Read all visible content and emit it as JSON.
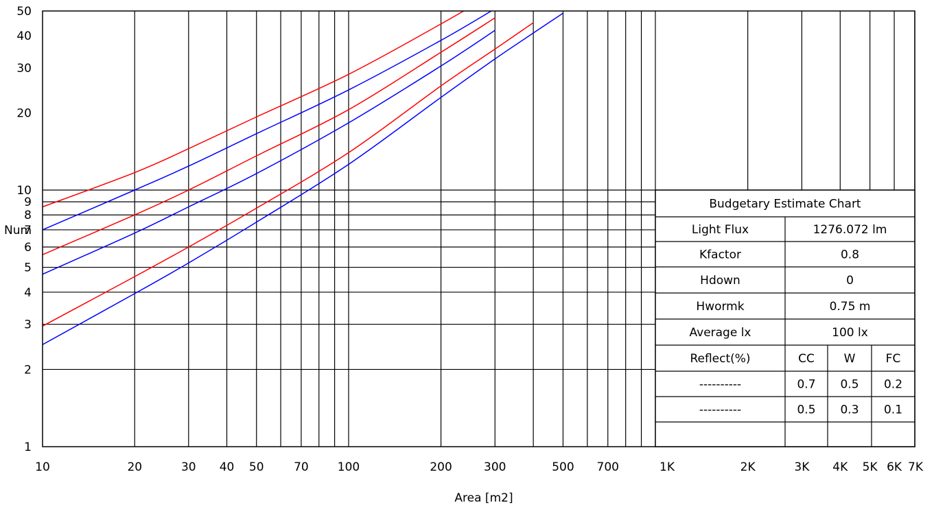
{
  "chart_data": {
    "type": "line",
    "x_scale": "log",
    "y_scale": "log",
    "xlim": [
      10,
      7000
    ],
    "ylim": [
      1,
      50
    ],
    "xlabel": "Area [m2]",
    "ylabel": "Num",
    "x_ticks": [
      {
        "v": 10,
        "label": "10"
      },
      {
        "v": 20,
        "label": "20"
      },
      {
        "v": 30,
        "label": "30"
      },
      {
        "v": 40,
        "label": "40"
      },
      {
        "v": 50,
        "label": "50"
      },
      {
        "v": 70,
        "label": "70"
      },
      {
        "v": 100,
        "label": "100"
      },
      {
        "v": 200,
        "label": "200"
      },
      {
        "v": 300,
        "label": "300"
      },
      {
        "v": 500,
        "label": "500"
      },
      {
        "v": 700,
        "label": "700"
      },
      {
        "v": 1000,
        "label": "1K"
      },
      {
        "v": 2000,
        "label": "2K"
      },
      {
        "v": 3000,
        "label": "3K"
      },
      {
        "v": 4000,
        "label": "4K"
      },
      {
        "v": 5000,
        "label": "5K"
      },
      {
        "v": 6000,
        "label": "6K"
      },
      {
        "v": 7000,
        "label": "7K"
      }
    ],
    "y_ticks": [
      {
        "v": 1,
        "label": "1"
      },
      {
        "v": 2,
        "label": "2"
      },
      {
        "v": 3,
        "label": "3"
      },
      {
        "v": 4,
        "label": "4"
      },
      {
        "v": 5,
        "label": "5"
      },
      {
        "v": 6,
        "label": "6"
      },
      {
        "v": 7,
        "label": "7"
      },
      {
        "v": 8,
        "label": "8"
      },
      {
        "v": 9,
        "label": "9"
      },
      {
        "v": 10,
        "label": "10"
      },
      {
        "v": 20,
        "label": "20"
      },
      {
        "v": 30,
        "label": "30"
      },
      {
        "v": 40,
        "label": "40"
      },
      {
        "v": 50,
        "label": "50"
      }
    ],
    "x_gridlines": [
      20,
      30,
      40,
      50,
      60,
      70,
      80,
      90,
      100,
      200,
      300,
      400,
      500,
      600,
      700,
      800,
      900,
      1000,
      2000,
      3000,
      4000,
      5000,
      6000,
      7000
    ],
    "y_gridlines": [
      2,
      3,
      4,
      5,
      6,
      7,
      8,
      9,
      10
    ],
    "series": [
      {
        "color": "#ff0000",
        "x": [
          10,
          20,
          30,
          50,
          100,
          200,
          300
        ],
        "y": [
          8.6,
          11.7,
          14.5,
          19.3,
          28.3,
          44.5,
          59
        ]
      },
      {
        "color": "#0000ff",
        "x": [
          10,
          20,
          30,
          50,
          100,
          200,
          300
        ],
        "y": [
          7.0,
          10.0,
          12.4,
          16.6,
          24.6,
          38.4,
          51
        ]
      },
      {
        "color": "#ff0000",
        "x": [
          10,
          20,
          30,
          50,
          100,
          200,
          300
        ],
        "y": [
          5.6,
          8.0,
          10.0,
          13.6,
          20.6,
          34.5,
          47
        ]
      },
      {
        "color": "#0000ff",
        "x": [
          10,
          20,
          30,
          50,
          100,
          200,
          300
        ],
        "y": [
          4.7,
          6.8,
          8.6,
          11.6,
          18.3,
          30.5,
          42
        ]
      },
      {
        "color": "#ff0000",
        "x": [
          10,
          20,
          30,
          50,
          100,
          200,
          300,
          400
        ],
        "y": [
          2.95,
          4.6,
          6.0,
          8.5,
          14.0,
          25.5,
          35.5,
          45
        ]
      },
      {
        "color": "#0000ff",
        "x": [
          10,
          20,
          30,
          50,
          100,
          200,
          300,
          400,
          500
        ],
        "y": [
          2.5,
          3.95,
          5.2,
          7.5,
          12.6,
          23.0,
          32.5,
          41,
          49
        ]
      }
    ]
  },
  "table": {
    "title": "Budgetary Estimate Chart",
    "rows": [
      {
        "label": "Light Flux",
        "value": "1276.072 lm"
      },
      {
        "label": "Kfactor",
        "value": "0.8"
      },
      {
        "label": "Hdown",
        "value": "0"
      },
      {
        "label": "Hwormk",
        "value": "0.75 m"
      },
      {
        "label": "Average lx",
        "value": "100 lx"
      }
    ],
    "reflect_header": {
      "label": "Reflect(%)",
      "cc": "CC",
      "w": "W",
      "fc": "FC"
    },
    "legend_rows": [
      {
        "dash": "----------",
        "color": "#0000ff",
        "cc": "0.7",
        "w": "0.5",
        "fc": "0.2"
      },
      {
        "dash": "----------",
        "color": "#ff0000",
        "cc": "0.5",
        "w": "0.3",
        "fc": "0.1"
      }
    ]
  }
}
